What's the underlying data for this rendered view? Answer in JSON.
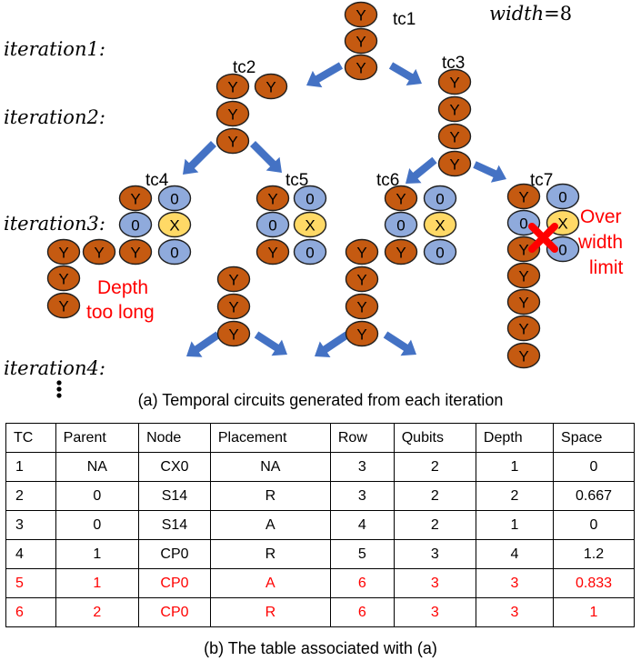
{
  "width_label": {
    "var": "width",
    "value": "=8"
  },
  "iterations": [
    "iteration1:",
    "iteration2:",
    "iteration3:",
    "iteration4:"
  ],
  "tc_labels": [
    "tc1",
    "tc2",
    "tc3",
    "tc4",
    "tc5",
    "tc6",
    "tc7"
  ],
  "notes": {
    "depth": [
      "Depth",
      "too long"
    ],
    "width": [
      "Over",
      "width",
      "limit"
    ]
  },
  "gate_letters": {
    "Y": "Y",
    "O": "0",
    "X": "X"
  },
  "colors": {
    "Y": "#c55a11",
    "O": "#8faadc",
    "X": "#ffd966",
    "arrow": "#4472c4",
    "red": "#ff0000"
  },
  "caption_a": "(a) Temporal circuits generated from each iteration",
  "caption_b": "(b) The table associated with (a)",
  "table": {
    "headers": [
      "TC",
      "Parent",
      "Node",
      "Placement",
      "Row",
      "Qubits",
      "Depth",
      "Space"
    ],
    "rows": [
      {
        "cells": [
          "1",
          "NA",
          "CX0",
          "NA",
          "3",
          "2",
          "1",
          "0"
        ],
        "highlight": false
      },
      {
        "cells": [
          "2",
          "0",
          "S14",
          "R",
          "3",
          "2",
          "2",
          "0.667"
        ],
        "highlight": false
      },
      {
        "cells": [
          "3",
          "0",
          "S14",
          "A",
          "4",
          "2",
          "1",
          "0"
        ],
        "highlight": false
      },
      {
        "cells": [
          "4",
          "1",
          "CP0",
          "R",
          "5",
          "3",
          "4",
          "1.2"
        ],
        "highlight": false
      },
      {
        "cells": [
          "5",
          "1",
          "CP0",
          "A",
          "6",
          "3",
          "3",
          "0.833"
        ],
        "highlight": true
      },
      {
        "cells": [
          "6",
          "2",
          "CP0",
          "R",
          "6",
          "3",
          "3",
          "1"
        ],
        "highlight": true
      }
    ]
  }
}
